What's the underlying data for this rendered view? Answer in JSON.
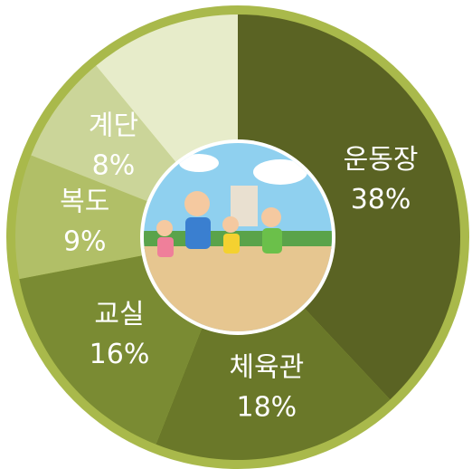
{
  "chart_data": {
    "type": "pie",
    "categories": [
      "운동장",
      "체육관",
      "교실",
      "복도",
      "계단",
      null
    ],
    "values": [
      38,
      18,
      16,
      9,
      8,
      11
    ],
    "value_labels": [
      "38%",
      "18%",
      "16%",
      "9%",
      "8%",
      null
    ],
    "colors": [
      "#5a6323",
      "#6a7829",
      "#7a8b33",
      "#b1bf67",
      "#cbd599",
      "#e7ecca"
    ]
  }
}
